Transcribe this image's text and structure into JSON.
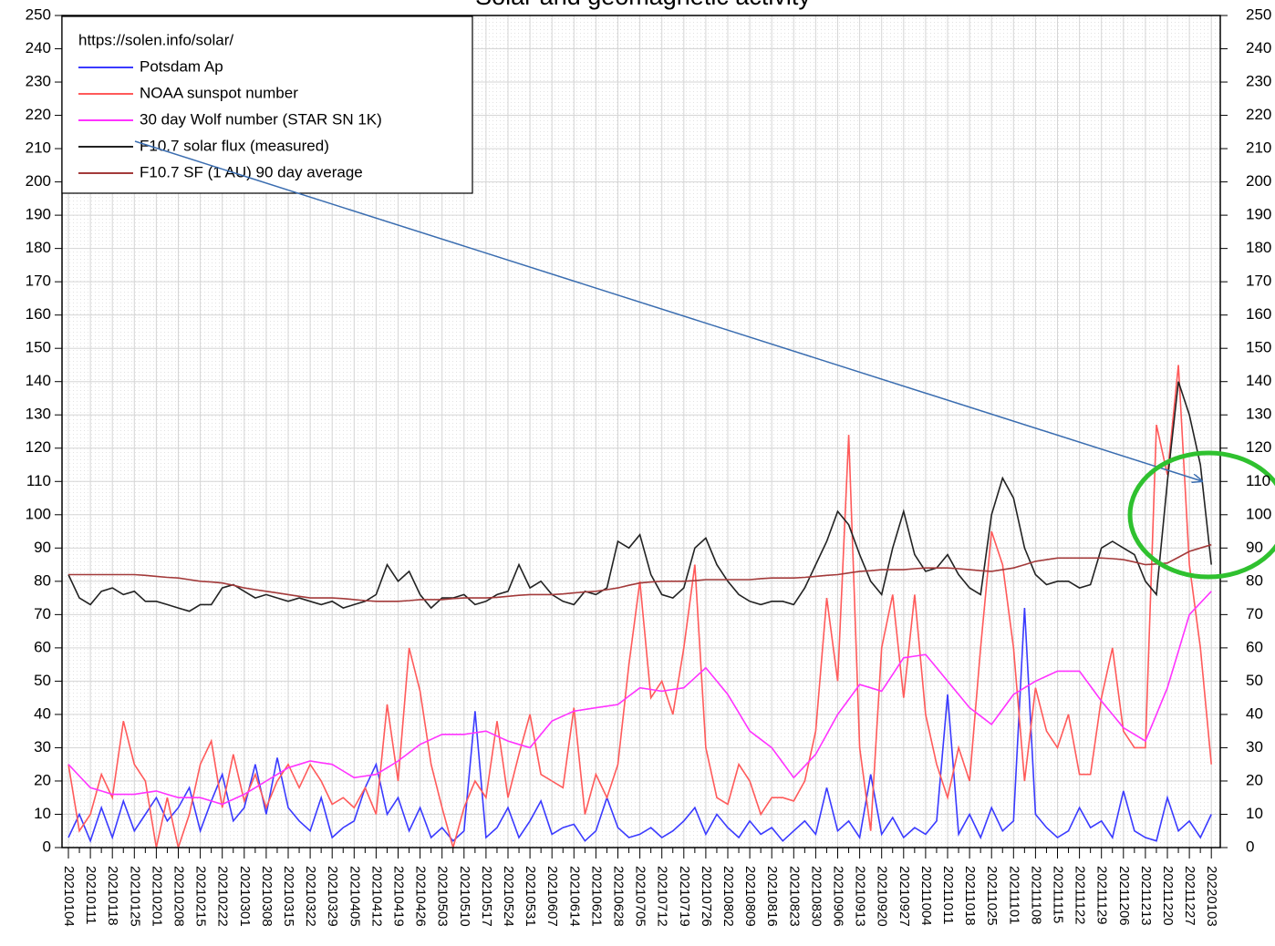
{
  "chart_data": {
    "type": "line",
    "title": "Solar and geomagnetic activity",
    "legend_title": "https://solen.info/solar/",
    "x": [
      "20210104",
      null,
      "20210111",
      null,
      "20210118",
      null,
      "20210125",
      null,
      "20210201",
      null,
      "20210208",
      null,
      "20210215",
      null,
      "20210222",
      null,
      "20210301",
      null,
      "20210308",
      null,
      "20210315",
      null,
      "20210322",
      null,
      "20210329",
      null,
      "20210405",
      null,
      "20210412",
      null,
      "20210419",
      null,
      "20210426",
      null,
      "20210503",
      null,
      "20210510",
      null,
      "20210517",
      null,
      "20210524",
      null,
      "20210531",
      null,
      "20210607",
      null,
      "20210614",
      null,
      "20210621",
      null,
      "20210628",
      null,
      "20210705",
      null,
      "20210712",
      null,
      "20210719",
      null,
      "20210726",
      null,
      "20210802",
      null,
      "20210809",
      null,
      "20210816",
      null,
      "20210823",
      null,
      "20210830",
      null,
      "20210906",
      null,
      "20210913",
      null,
      "20210920",
      null,
      "20210927",
      null,
      "20211004",
      null,
      "20211011",
      null,
      "20211018",
      null,
      "20211025",
      null,
      "20211101",
      null,
      "20211108",
      null,
      "20211115",
      null,
      "20211122",
      null,
      "20211129",
      null,
      "20211206",
      null,
      "20211213",
      null,
      "20211220",
      null,
      "20211227",
      null,
      "20220103"
    ],
    "series": [
      {
        "name": "Potsdam Ap",
        "color": "#3a3aff",
        "values": [
          3,
          10,
          2,
          12,
          3,
          14,
          5,
          10,
          15,
          8,
          12,
          18,
          5,
          14,
          22,
          8,
          12,
          25,
          10,
          27,
          12,
          8,
          5,
          15,
          3,
          6,
          8,
          18,
          25,
          10,
          15,
          5,
          12,
          3,
          6,
          2,
          5,
          41,
          3,
          6,
          12,
          3,
          8,
          14,
          4,
          6,
          7,
          2,
          5,
          15,
          6,
          3,
          4,
          6,
          3,
          5,
          8,
          12,
          4,
          10,
          6,
          3,
          8,
          4,
          6,
          2,
          5,
          8,
          4,
          18,
          5,
          8,
          3,
          22,
          4,
          9,
          3,
          6,
          4,
          8,
          46,
          4,
          10,
          3,
          12,
          5,
          8,
          72,
          10,
          6,
          3,
          5,
          12,
          6,
          8,
          3,
          17,
          5,
          3,
          2,
          15,
          5,
          8,
          3,
          10
        ]
      },
      {
        "name": "NOAA sunspot number",
        "color": "#ff5a5a",
        "values": [
          25,
          5,
          10,
          22,
          15,
          38,
          25,
          20,
          0,
          15,
          0,
          10,
          25,
          32,
          12,
          28,
          14,
          22,
          12,
          20,
          25,
          18,
          25,
          20,
          13,
          15,
          12,
          18,
          10,
          43,
          20,
          60,
          47,
          25,
          12,
          0,
          12,
          20,
          15,
          38,
          15,
          28,
          40,
          22,
          20,
          18,
          42,
          10,
          22,
          15,
          25,
          55,
          80,
          45,
          50,
          40,
          60,
          85,
          30,
          15,
          13,
          25,
          20,
          10,
          15,
          15,
          14,
          20,
          35,
          75,
          50,
          124,
          30,
          5,
          60,
          76,
          45,
          76,
          40,
          25,
          15,
          30,
          20,
          60,
          95,
          85,
          60,
          20,
          48,
          35,
          30,
          40,
          22,
          22,
          45,
          60,
          35,
          30,
          30,
          127,
          112,
          145,
          85,
          60,
          25
        ]
      },
      {
        "name": "30 day Wolf number (STAR SN 1K)",
        "color": "#ff33ff",
        "values": [
          25,
          21.5,
          18,
          17,
          16,
          16,
          16,
          16.5,
          17,
          16,
          15,
          15,
          15,
          14,
          13,
          14.5,
          16,
          18,
          20,
          22,
          24,
          25,
          26,
          25.5,
          25,
          23,
          21,
          21.5,
          22,
          24,
          26,
          28.5,
          31,
          32.5,
          34,
          34,
          34,
          34.5,
          35,
          33.5,
          32,
          31,
          30,
          34,
          38,
          39.5,
          41,
          41.5,
          42,
          42.5,
          43,
          45.5,
          48,
          47.5,
          47,
          47.5,
          48,
          51,
          54,
          50,
          46,
          40.5,
          35,
          32.5,
          30,
          25.5,
          21,
          24.5,
          28,
          34,
          40,
          44.5,
          49,
          48,
          47,
          52,
          57,
          57.5,
          58,
          54,
          50,
          46,
          42,
          39.5,
          37,
          41.5,
          46,
          48,
          50,
          51.5,
          53,
          53,
          53,
          48.5,
          44,
          40,
          36,
          34,
          32,
          40,
          48,
          59,
          70,
          73.5,
          77
        ]
      },
      {
        "name": "F10.7 solar flux (measured)",
        "color": "#222222",
        "values": [
          82,
          75,
          73,
          77,
          78,
          76,
          77,
          74,
          74,
          73,
          72,
          71,
          73,
          73,
          78,
          79,
          77,
          75,
          76,
          75,
          74,
          75,
          74,
          73,
          74,
          72,
          73,
          74,
          76,
          85,
          80,
          83,
          76,
          72,
          75,
          75,
          76,
          73,
          74,
          76,
          77,
          85,
          78,
          80,
          76,
          74,
          73,
          77,
          76,
          78,
          92,
          90,
          94,
          82,
          76,
          75,
          78,
          90,
          93,
          85,
          80,
          76,
          74,
          73,
          74,
          74,
          73,
          78,
          85,
          92,
          101,
          97,
          88,
          80,
          76,
          90,
          101,
          88,
          83,
          84,
          88,
          82,
          78,
          76,
          100,
          111,
          105,
          90,
          82,
          79,
          80,
          80,
          78,
          79,
          90,
          92,
          90,
          88,
          80,
          76,
          110,
          140,
          130,
          115,
          85
        ]
      },
      {
        "name": "F10.7 SF (1 AU) 90 day average",
        "color": "#a33a3a",
        "values": [
          82,
          82,
          82,
          82,
          82,
          82,
          82,
          81.8,
          81.5,
          81.2,
          81,
          80.5,
          80,
          79.8,
          79.5,
          78.8,
          78,
          77.5,
          77,
          76.5,
          76,
          75.5,
          75,
          75,
          75,
          74.8,
          74.5,
          74.2,
          74,
          74,
          74,
          74.2,
          74.5,
          74.5,
          74.5,
          74.8,
          75,
          75,
          75,
          75.2,
          75.5,
          75.8,
          76,
          76,
          76,
          76.2,
          76.5,
          76.8,
          77,
          77.5,
          78,
          78.8,
          79.5,
          79.8,
          80,
          80,
          80,
          80.2,
          80.5,
          80.5,
          80.5,
          80.5,
          80.5,
          80.8,
          81,
          81,
          81,
          81.2,
          81.5,
          81.8,
          82,
          82.5,
          83,
          83.2,
          83.5,
          83.5,
          83.5,
          83.8,
          84,
          84,
          84,
          83.8,
          83.5,
          83.2,
          83,
          83.5,
          84,
          85,
          86,
          86.5,
          87,
          87,
          87,
          87,
          87,
          86.8,
          86.5,
          85.8,
          85,
          85.2,
          85.5,
          87.2,
          89,
          90,
          91
        ]
      }
    ],
    "ylim": [
      0,
      250
    ],
    "yticks": [
      0,
      10,
      20,
      30,
      40,
      50,
      60,
      70,
      80,
      90,
      100,
      110,
      120,
      130,
      140,
      150,
      160,
      170,
      180,
      190,
      200,
      210,
      220,
      230,
      240,
      250
    ],
    "grid": true
  }
}
